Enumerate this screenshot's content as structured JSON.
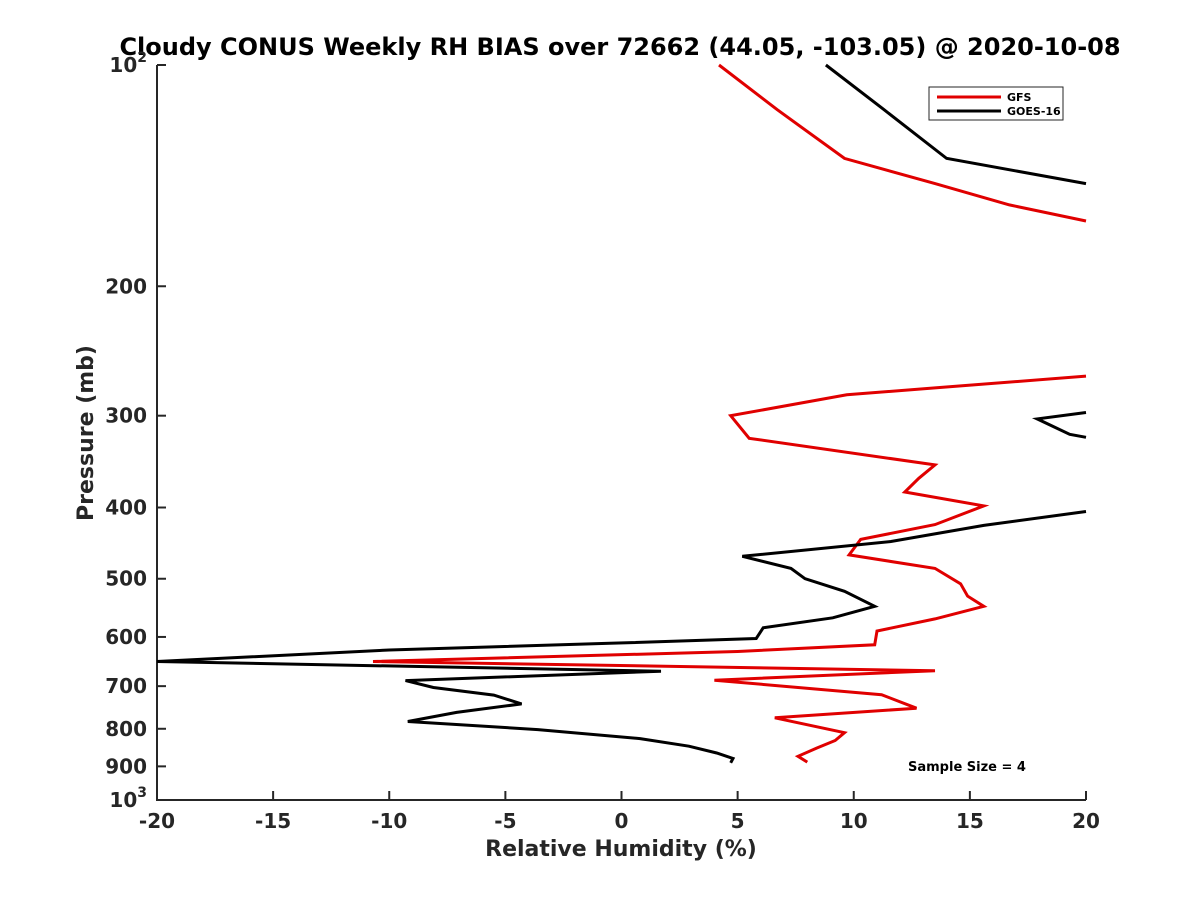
{
  "chart_data": {
    "type": "line",
    "title": "Cloudy CONUS Weekly RH BIAS over 72662 (44.05, -103.05) @ 2020-10-08",
    "xlabel": "Relative Humidity (%)",
    "ylabel": "Pressure (mb)",
    "xlim": [
      -20,
      20
    ],
    "ylim": [
      100,
      1000
    ],
    "y_scale": "log",
    "y_reversed": true,
    "grid": false,
    "legend_position": "top-right",
    "x_ticks": [
      "-20",
      "-15",
      "-10",
      "-5",
      "0",
      "5",
      "10",
      "15",
      "20"
    ],
    "y_ticks": [
      {
        "value": 100,
        "base": "10",
        "exp": "2"
      },
      {
        "value": 200,
        "label": "200"
      },
      {
        "value": 300,
        "label": "300"
      },
      {
        "value": 400,
        "label": "400"
      },
      {
        "value": 500,
        "label": "500"
      },
      {
        "value": 600,
        "label": "600"
      },
      {
        "value": 700,
        "label": "700"
      },
      {
        "value": 800,
        "label": "800"
      },
      {
        "value": 900,
        "label": "900"
      },
      {
        "value": 1000,
        "base": "10",
        "exp": "3"
      }
    ],
    "annotation": "Sample Size = 4",
    "series": [
      {
        "name": "GFS",
        "color": "#e00000",
        "segments": [
          [
            [
              4.2,
              100
            ],
            [
              6.7,
              115
            ],
            [
              9.6,
              134
            ],
            [
              13.5,
              145
            ],
            [
              16.7,
              155
            ],
            [
              20,
              163
            ]
          ],
          [
            [
              20,
              265
            ],
            [
              13.5,
              275
            ],
            [
              9.7,
              281
            ],
            [
              4.7,
              300
            ],
            [
              5.5,
              322
            ],
            [
              13.5,
              350
            ],
            [
              12.8,
              365
            ],
            [
              12.2,
              381
            ],
            [
              15.6,
              398
            ],
            [
              13.5,
              422
            ],
            [
              10.3,
              442
            ],
            [
              9.8,
              464
            ],
            [
              13.5,
              484
            ],
            [
              14.6,
              508
            ],
            [
              14.9,
              528
            ],
            [
              15.6,
              545
            ],
            [
              13.5,
              567
            ],
            [
              11.0,
              589
            ],
            [
              10.9,
              615
            ],
            [
              5.0,
              628
            ],
            [
              -10.7,
              648
            ],
            [
              13.5,
              667
            ],
            [
              4.0,
              687
            ],
            [
              11.2,
              719
            ],
            [
              12.7,
              750
            ],
            [
              6.6,
              773
            ],
            [
              9.6,
              810
            ],
            [
              9.2,
              830
            ],
            [
              8.4,
              850
            ],
            [
              7.6,
              872
            ],
            [
              8.0,
              888
            ]
          ]
        ]
      },
      {
        "name": "GOES-16",
        "color": "#000000",
        "segments": [
          [
            [
              8.8,
              100
            ],
            [
              11.3,
              115
            ],
            [
              14.0,
              134
            ],
            [
              20,
              145
            ]
          ],
          [
            [
              20,
              297
            ],
            [
              17.9,
              303
            ],
            [
              19.3,
              318
            ],
            [
              20,
              321
            ]
          ],
          [
            [
              20,
              405
            ],
            [
              15.6,
              423
            ],
            [
              11.6,
              445
            ],
            [
              5.2,
              466
            ],
            [
              7.3,
              484
            ],
            [
              7.9,
              500
            ],
            [
              9.6,
              520
            ],
            [
              10.9,
              545
            ],
            [
              9.1,
              565
            ],
            [
              6.1,
              583
            ],
            [
              5.8,
              603
            ],
            [
              -0.5,
              612
            ],
            [
              -10.0,
              625
            ],
            [
              -20,
              648
            ],
            [
              1.7,
              668
            ],
            [
              -9.3,
              688
            ],
            [
              -8.1,
              703
            ],
            [
              -5.5,
              720
            ],
            [
              -4.3,
              740
            ],
            [
              -7.1,
              760
            ],
            [
              -9.2,
              782
            ],
            [
              -3.6,
              802
            ],
            [
              0.8,
              825
            ],
            [
              2.9,
              845
            ],
            [
              4.1,
              863
            ],
            [
              4.8,
              878
            ],
            [
              4.7,
              890
            ]
          ]
        ]
      }
    ]
  }
}
